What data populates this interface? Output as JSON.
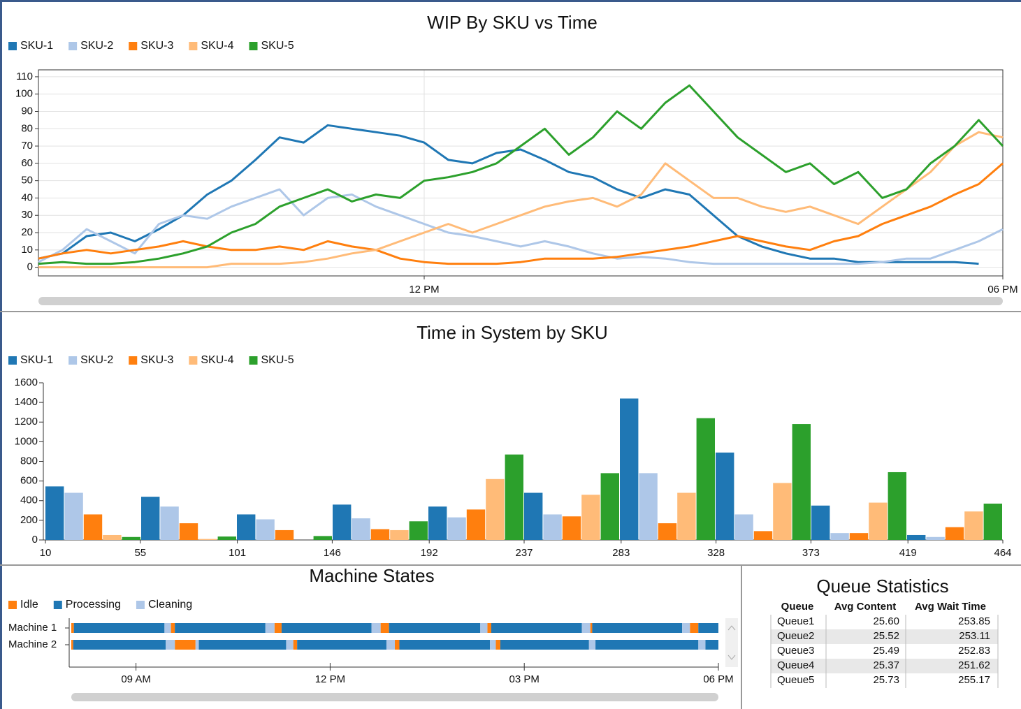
{
  "chart_data": [
    {
      "type": "line",
      "title": "WIP By SKU vs Time",
      "x": [
        8,
        8.25,
        8.5,
        8.75,
        9,
        9.25,
        9.5,
        9.75,
        10,
        10.25,
        10.5,
        10.75,
        11,
        11.25,
        11.5,
        11.75,
        12,
        12.25,
        12.5,
        12.75,
        13,
        13.25,
        13.5,
        13.75,
        14,
        14.25,
        14.5,
        14.75,
        15,
        15.25,
        15.5,
        15.75,
        16,
        16.25,
        16.5,
        16.75,
        17,
        17.25,
        17.5,
        17.75,
        18
      ],
      "series": [
        {
          "name": "SKU-1",
          "color": "#1f77b4",
          "values": [
            5,
            8,
            18,
            20,
            15,
            22,
            30,
            42,
            50,
            62,
            75,
            72,
            82,
            80,
            78,
            76,
            72,
            62,
            60,
            66,
            68,
            62,
            55,
            52,
            45,
            40,
            45,
            42,
            30,
            18,
            12,
            8,
            5,
            5,
            3,
            3,
            3,
            3,
            3,
            2,
            null
          ]
        },
        {
          "name": "SKU-2",
          "color": "#aec7e8",
          "values": [
            3,
            10,
            22,
            15,
            8,
            25,
            30,
            28,
            35,
            40,
            45,
            30,
            40,
            42,
            35,
            30,
            25,
            20,
            18,
            15,
            12,
            15,
            12,
            8,
            5,
            6,
            5,
            3,
            2,
            2,
            2,
            2,
            2,
            2,
            2,
            3,
            5,
            5,
            10,
            15,
            22
          ]
        },
        {
          "name": "SKU-3",
          "color": "#ff7f0e",
          "values": [
            5,
            8,
            10,
            8,
            10,
            12,
            15,
            12,
            10,
            10,
            12,
            10,
            15,
            12,
            10,
            5,
            3,
            2,
            2,
            2,
            3,
            5,
            5,
            5,
            6,
            8,
            10,
            12,
            15,
            18,
            15,
            12,
            10,
            15,
            18,
            25,
            30,
            35,
            42,
            48,
            60
          ]
        },
        {
          "name": "SKU-4",
          "color": "#ffbb78",
          "values": [
            0,
            0,
            0,
            0,
            0,
            0,
            0,
            0,
            2,
            2,
            2,
            3,
            5,
            8,
            10,
            15,
            20,
            25,
            20,
            25,
            30,
            35,
            38,
            40,
            35,
            42,
            60,
            50,
            40,
            40,
            35,
            32,
            35,
            30,
            25,
            35,
            45,
            55,
            70,
            78,
            75
          ]
        },
        {
          "name": "SKU-5",
          "color": "#2ca02c",
          "values": [
            2,
            3,
            2,
            2,
            3,
            5,
            8,
            12,
            20,
            25,
            35,
            40,
            45,
            38,
            42,
            40,
            50,
            52,
            55,
            60,
            70,
            80,
            65,
            75,
            90,
            80,
            95,
            105,
            90,
            75,
            65,
            55,
            60,
            48,
            55,
            40,
            45,
            60,
            70,
            85,
            70
          ]
        }
      ],
      "xlim": [
        8,
        18
      ],
      "xticks": [
        {
          "value": 12,
          "label": "12 PM"
        },
        {
          "value": 18,
          "label": "06 PM"
        }
      ],
      "ylim": [
        -5,
        114
      ],
      "yticks": [
        0,
        10,
        20,
        30,
        40,
        50,
        60,
        70,
        80,
        90,
        100,
        110
      ],
      "grid": true
    },
    {
      "type": "bar",
      "title": "Time in System by SKU",
      "series": [
        {
          "name": "SKU-1",
          "color": "#1f77b4",
          "values": [
            545,
            440,
            260,
            360,
            340,
            480,
            1440,
            890,
            350,
            50
          ]
        },
        {
          "name": "SKU-2",
          "color": "#aec7e8",
          "values": [
            480,
            340,
            210,
            220,
            230,
            260,
            680,
            260,
            70,
            30
          ]
        },
        {
          "name": "SKU-3",
          "color": "#ff7f0e",
          "values": [
            260,
            170,
            100,
            110,
            310,
            240,
            170,
            90,
            70,
            130
          ]
        },
        {
          "name": "SKU-4",
          "color": "#ffbb78",
          "values": [
            50,
            10,
            0,
            100,
            620,
            460,
            480,
            580,
            380,
            290
          ]
        },
        {
          "name": "SKU-5",
          "color": "#2ca02c",
          "values": [
            30,
            35,
            40,
            190,
            870,
            680,
            1240,
            1180,
            690,
            370
          ]
        }
      ],
      "xlim": [
        10,
        464
      ],
      "xticks": [
        10,
        55,
        101,
        146,
        192,
        237,
        283,
        328,
        373,
        419,
        464
      ],
      "ylim": [
        0,
        1600
      ],
      "yticks": [
        0,
        200,
        400,
        600,
        800,
        1000,
        1200,
        1400,
        1600
      ]
    },
    {
      "type": "timeline",
      "title": "Machine States",
      "categories": [
        "Machine 1",
        "Machine 2"
      ],
      "series": [
        {
          "name": "Idle",
          "color": "#ff7f0e",
          "values": [
            [
              [
                8,
                8.04
              ],
              [
                9.54,
                9.6
              ],
              [
                11.14,
                11.25
              ],
              [
                12.78,
                12.91
              ],
              [
                14.43,
                14.49
              ],
              [
                16.02,
                16.05
              ],
              [
                17.56,
                17.69
              ]
            ],
            [
              [
                8,
                8.03
              ],
              [
                9.6,
                9.92
              ],
              [
                11.43,
                11.49
              ],
              [
                13.0,
                13.07
              ],
              [
                14.56,
                14.63
              ]
            ]
          ]
        },
        {
          "name": "Processing",
          "color": "#1f77b4",
          "values": [
            [
              [
                8.04,
                9.44
              ],
              [
                9.6,
                11.0
              ],
              [
                11.25,
                12.64
              ],
              [
                12.91,
                14.32
              ],
              [
                14.49,
                15.89
              ],
              [
                16.05,
                17.44
              ],
              [
                17.69,
                18
              ]
            ],
            [
              [
                8.03,
                9.46
              ],
              [
                9.97,
                11.32
              ],
              [
                11.49,
                12.87
              ],
              [
                13.07,
                14.47
              ],
              [
                14.63,
                16.0
              ],
              [
                16.1,
                17.69
              ],
              [
                17.8,
                18
              ]
            ]
          ]
        },
        {
          "name": "Cleaning",
          "color": "#aec7e8",
          "values": [
            [
              [
                9.44,
                9.54
              ],
              [
                11.0,
                11.14
              ],
              [
                12.64,
                12.78
              ],
              [
                14.32,
                14.43
              ],
              [
                15.89,
                16.02
              ],
              [
                17.44,
                17.56
              ]
            ],
            [
              [
                9.46,
                9.6
              ],
              [
                9.92,
                9.97
              ],
              [
                11.32,
                11.43
              ],
              [
                12.87,
                13.0
              ],
              [
                14.47,
                14.56
              ],
              [
                16.0,
                16.1
              ],
              [
                17.69,
                17.8
              ]
            ]
          ]
        }
      ],
      "xlim": [
        8,
        18
      ],
      "xticks": [
        {
          "value": 9,
          "label": "09 AM"
        },
        {
          "value": 12,
          "label": "12 PM"
        },
        {
          "value": 15,
          "label": "03 PM"
        },
        {
          "value": 18,
          "label": "06 PM"
        }
      ]
    }
  ],
  "table": {
    "title": "Queue Statistics",
    "header": [
      "Queue",
      "Avg Content",
      "Avg Wait Time"
    ],
    "rows": [
      [
        "Queue1",
        "25.60",
        "253.85"
      ],
      [
        "Queue2",
        "25.52",
        "253.11"
      ],
      [
        "Queue3",
        "25.49",
        "252.83"
      ],
      [
        "Queue4",
        "25.37",
        "251.62"
      ],
      [
        "Queue5",
        "25.73",
        "255.17"
      ]
    ]
  }
}
